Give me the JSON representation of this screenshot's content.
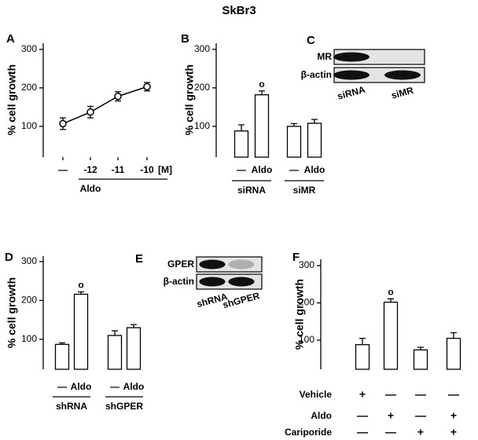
{
  "title": "SkBr3",
  "chart_data": [
    {
      "type": "line",
      "panel": "A",
      "y_label": "% cell growth",
      "categories": [
        "—",
        "-12",
        "-11",
        "-10"
      ],
      "x_unit": "[M]",
      "x_group": "Aldo",
      "values": [
        107,
        137,
        178,
        203
      ],
      "errors": [
        15,
        15,
        12,
        11
      ],
      "ylim": [
        20,
        316
      ],
      "yticks": [
        100,
        200,
        300
      ],
      "color": "#000000"
    },
    {
      "type": "bar",
      "panel": "B",
      "y_label": "% cell growth",
      "categories": [
        "—",
        "Aldo",
        "—",
        "Aldo"
      ],
      "groups": [
        "siRNA",
        "siMR"
      ],
      "values": [
        88,
        182,
        100,
        108
      ],
      "errors": [
        16,
        10,
        7,
        10
      ],
      "significance": [
        {
          "index": 1,
          "label": "o"
        }
      ],
      "ylim": [
        20,
        316
      ],
      "yticks": [
        100,
        200,
        300
      ],
      "color": "#ffffff"
    },
    {
      "type": "bar",
      "panel": "D",
      "y_label": "% cell growth",
      "categories": [
        "—",
        "Aldo",
        "—",
        "Aldo"
      ],
      "groups": [
        "shRNA",
        "shGPER"
      ],
      "values": [
        87,
        216,
        110,
        130
      ],
      "errors": [
        4,
        6,
        12,
        8
      ],
      "significance": [
        {
          "index": 1,
          "label": "o"
        }
      ],
      "ylim": [
        23,
        314
      ],
      "yticks": [
        100,
        200,
        300
      ],
      "color": "#ffffff"
    },
    {
      "type": "bar",
      "panel": "F",
      "y_label": "% cell growth",
      "values": [
        88,
        202,
        74,
        105
      ],
      "errors": [
        17,
        9,
        7,
        15
      ],
      "significance": [
        {
          "index": 1,
          "label": "o"
        }
      ],
      "treatments": [
        {
          "name": "Vehicle",
          "signs": [
            "+",
            "—",
            "—",
            "—"
          ]
        },
        {
          "name": "Aldo",
          "signs": [
            "—",
            "+",
            "—",
            "+"
          ]
        },
        {
          "name": "Cariporide",
          "signs": [
            "—",
            "—",
            "+",
            "+"
          ]
        }
      ],
      "ylim": [
        22,
        317
      ],
      "yticks": [
        100,
        200,
        300
      ],
      "color": "#ffffff"
    }
  ],
  "blots": [
    {
      "panel": "C",
      "bands": [
        "MR",
        "β-actin"
      ],
      "lanes": [
        "siRNA",
        "siMR"
      ]
    },
    {
      "panel": "E",
      "bands": [
        "GPER",
        "β-actin"
      ],
      "lanes": [
        "shRNA",
        "shGPER"
      ]
    }
  ]
}
